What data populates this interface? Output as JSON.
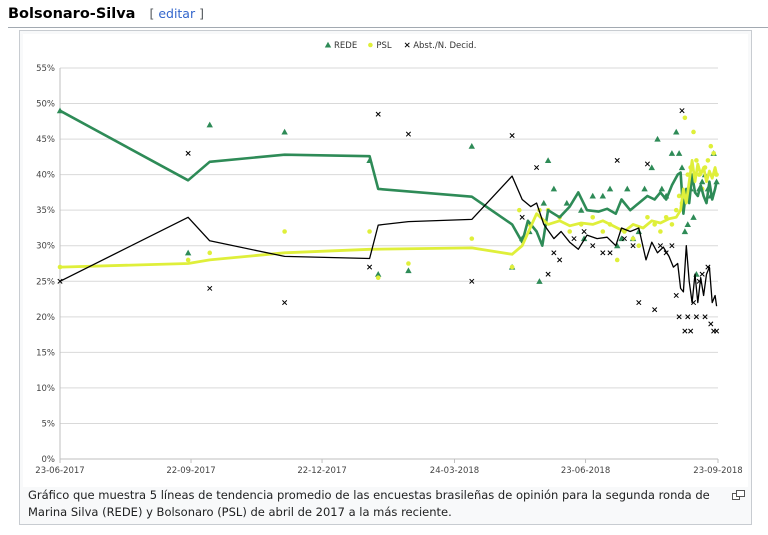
{
  "heading": {
    "title": "Bolsonaro-Silva",
    "edit_open": "[",
    "edit_label": "editar",
    "edit_close": "]"
  },
  "caption": "Gráfico que muestra 5 líneas de tendencia promedio de las encuestas brasileñas de opinión para la segunda ronda de Marina Silva (REDE) y Bolsonaro (PSL) de abril de 2017 a la más reciente.",
  "colors": {
    "rede": "#2e8b57",
    "psl": "#dfef3a",
    "abst": "#000000",
    "grid": "#d9d9d9"
  },
  "chart_data": {
    "type": "line",
    "title": "",
    "xlabel": "",
    "ylabel": "",
    "x_ticks": [
      "23-06-2017",
      "22-09-2017",
      "22-12-2017",
      "24-03-2018",
      "23-06-2018",
      "23-09-2018"
    ],
    "x_start": "2017-06-23",
    "x_end": "2018-09-23",
    "y_ticks": [
      "0%",
      "5%",
      "10%",
      "15%",
      "20%",
      "25%",
      "30%",
      "35%",
      "40%",
      "45%",
      "50%",
      "55%"
    ],
    "ylim": [
      0,
      55
    ],
    "legend_position": "top-center",
    "legend": [
      {
        "key": "rede",
        "label": "REDE",
        "marker": "triangle"
      },
      {
        "key": "psl",
        "label": "PSL",
        "marker": "dot"
      },
      {
        "key": "abst",
        "label": "Abst./N. Decid.",
        "marker": "x"
      }
    ],
    "series": [
      {
        "key": "rede",
        "name": "REDE",
        "kind": "points",
        "points": [
          [
            "2017-06-23",
            49
          ],
          [
            "2017-09-20",
            29
          ],
          [
            "2017-10-05",
            47
          ],
          [
            "2017-11-26",
            46
          ],
          [
            "2018-01-24",
            42
          ],
          [
            "2018-01-30",
            26
          ],
          [
            "2018-02-20",
            26.5
          ],
          [
            "2018-04-05",
            44
          ],
          [
            "2018-05-03",
            27
          ],
          [
            "2018-05-10",
            31
          ],
          [
            "2018-05-15",
            32
          ],
          [
            "2018-05-22",
            25
          ],
          [
            "2018-05-25",
            36
          ],
          [
            "2018-05-28",
            42
          ],
          [
            "2018-06-01",
            38
          ],
          [
            "2018-06-10",
            36
          ],
          [
            "2018-06-20",
            35
          ],
          [
            "2018-06-22",
            31
          ],
          [
            "2018-06-28",
            37
          ],
          [
            "2018-07-05",
            37
          ],
          [
            "2018-07-10",
            38
          ],
          [
            "2018-07-15",
            30
          ],
          [
            "2018-07-18",
            31
          ],
          [
            "2018-07-22",
            38
          ],
          [
            "2018-07-26",
            31
          ],
          [
            "2018-07-30",
            32
          ],
          [
            "2018-08-03",
            38
          ],
          [
            "2018-08-08",
            41
          ],
          [
            "2018-08-12",
            45
          ],
          [
            "2018-08-15",
            38
          ],
          [
            "2018-08-18",
            37
          ],
          [
            "2018-08-22",
            43
          ],
          [
            "2018-08-25",
            46
          ],
          [
            "2018-08-27",
            43
          ],
          [
            "2018-08-29",
            41
          ],
          [
            "2018-08-31",
            32
          ],
          [
            "2018-09-02",
            33
          ],
          [
            "2018-09-04",
            38
          ],
          [
            "2018-09-06",
            34
          ],
          [
            "2018-09-08",
            26
          ],
          [
            "2018-09-10",
            38
          ],
          [
            "2018-09-12",
            39
          ],
          [
            "2018-09-14",
            40
          ],
          [
            "2018-09-16",
            38
          ],
          [
            "2018-09-18",
            37
          ],
          [
            "2018-09-20",
            43
          ],
          [
            "2018-09-22",
            39
          ]
        ]
      },
      {
        "key": "psl",
        "name": "PSL",
        "kind": "points",
        "points": [
          [
            "2017-06-23",
            27
          ],
          [
            "2017-09-20",
            28
          ],
          [
            "2017-10-05",
            29
          ],
          [
            "2017-11-26",
            32
          ],
          [
            "2018-01-24",
            32
          ],
          [
            "2018-01-30",
            25.5
          ],
          [
            "2018-02-20",
            27.5
          ],
          [
            "2018-04-05",
            31
          ],
          [
            "2018-05-03",
            27
          ],
          [
            "2018-05-08",
            35
          ],
          [
            "2018-05-15",
            33
          ],
          [
            "2018-05-22",
            35
          ],
          [
            "2018-05-28",
            35
          ],
          [
            "2018-06-05",
            34
          ],
          [
            "2018-06-12",
            32
          ],
          [
            "2018-06-20",
            33
          ],
          [
            "2018-06-28",
            34
          ],
          [
            "2018-07-05",
            32
          ],
          [
            "2018-07-10",
            33
          ],
          [
            "2018-07-15",
            28
          ],
          [
            "2018-07-20",
            32
          ],
          [
            "2018-07-26",
            31
          ],
          [
            "2018-07-30",
            30
          ],
          [
            "2018-08-05",
            34
          ],
          [
            "2018-08-10",
            33
          ],
          [
            "2018-08-14",
            32
          ],
          [
            "2018-08-18",
            34
          ],
          [
            "2018-08-22",
            33
          ],
          [
            "2018-08-25",
            35
          ],
          [
            "2018-08-27",
            37
          ],
          [
            "2018-08-29",
            36
          ],
          [
            "2018-08-31",
            48
          ],
          [
            "2018-09-02",
            40
          ],
          [
            "2018-09-04",
            41
          ],
          [
            "2018-09-06",
            46
          ],
          [
            "2018-09-08",
            42
          ],
          [
            "2018-09-10",
            40
          ],
          [
            "2018-09-12",
            38
          ],
          [
            "2018-09-14",
            41
          ],
          [
            "2018-09-16",
            42
          ],
          [
            "2018-09-18",
            44
          ],
          [
            "2018-09-20",
            43
          ],
          [
            "2018-09-22",
            40
          ]
        ]
      },
      {
        "key": "abst",
        "name": "Abst./N. Decid.",
        "kind": "points",
        "points": [
          [
            "2017-06-23",
            25
          ],
          [
            "2017-09-20",
            43
          ],
          [
            "2017-10-05",
            24
          ],
          [
            "2017-11-26",
            22
          ],
          [
            "2018-01-24",
            27
          ],
          [
            "2018-01-30",
            48.5
          ],
          [
            "2018-02-20",
            45.7
          ],
          [
            "2018-04-05",
            25
          ],
          [
            "2018-05-03",
            45.5
          ],
          [
            "2018-05-10",
            34
          ],
          [
            "2018-05-20",
            41
          ],
          [
            "2018-05-28",
            26
          ],
          [
            "2018-06-01",
            29
          ],
          [
            "2018-06-05",
            28
          ],
          [
            "2018-06-15",
            31
          ],
          [
            "2018-06-22",
            32
          ],
          [
            "2018-06-28",
            30
          ],
          [
            "2018-07-05",
            29
          ],
          [
            "2018-07-10",
            29
          ],
          [
            "2018-07-15",
            42
          ],
          [
            "2018-07-20",
            31
          ],
          [
            "2018-07-26",
            30
          ],
          [
            "2018-07-30",
            22
          ],
          [
            "2018-08-05",
            41.5
          ],
          [
            "2018-08-10",
            21
          ],
          [
            "2018-08-14",
            30
          ],
          [
            "2018-08-18",
            29
          ],
          [
            "2018-08-22",
            30
          ],
          [
            "2018-08-25",
            23
          ],
          [
            "2018-08-27",
            20
          ],
          [
            "2018-08-29",
            49
          ],
          [
            "2018-08-31",
            18
          ],
          [
            "2018-09-02",
            20
          ],
          [
            "2018-09-04",
            18
          ],
          [
            "2018-09-06",
            22
          ],
          [
            "2018-09-08",
            20
          ],
          [
            "2018-09-10",
            25
          ],
          [
            "2018-09-12",
            26
          ],
          [
            "2018-09-14",
            20
          ],
          [
            "2018-09-16",
            27
          ],
          [
            "2018-09-18",
            19
          ],
          [
            "2018-09-20",
            18
          ],
          [
            "2018-09-22",
            18
          ]
        ]
      },
      {
        "key": "rede",
        "name": "REDE",
        "kind": "trend",
        "points": [
          [
            "2017-06-23",
            49
          ],
          [
            "2017-09-20",
            39.2
          ],
          [
            "2017-10-05",
            41.8
          ],
          [
            "2017-11-26",
            42.8
          ],
          [
            "2018-01-24",
            42.6
          ],
          [
            "2018-01-30",
            38
          ],
          [
            "2018-04-05",
            36.9
          ],
          [
            "2018-05-03",
            33
          ],
          [
            "2018-05-10",
            30.5
          ],
          [
            "2018-05-14",
            33.5
          ],
          [
            "2018-05-20",
            32
          ],
          [
            "2018-05-24",
            30
          ],
          [
            "2018-05-28",
            35
          ],
          [
            "2018-06-05",
            34
          ],
          [
            "2018-06-12",
            35.5
          ],
          [
            "2018-06-18",
            37.5
          ],
          [
            "2018-06-24",
            35
          ],
          [
            "2018-07-02",
            34.8
          ],
          [
            "2018-07-08",
            35.2
          ],
          [
            "2018-07-14",
            34.5
          ],
          [
            "2018-07-18",
            36.5
          ],
          [
            "2018-07-24",
            35
          ],
          [
            "2018-07-30",
            36
          ],
          [
            "2018-08-05",
            37
          ],
          [
            "2018-08-10",
            36.5
          ],
          [
            "2018-08-14",
            37.5
          ],
          [
            "2018-08-18",
            36.5
          ],
          [
            "2018-08-22",
            38.5
          ],
          [
            "2018-08-26",
            40
          ],
          [
            "2018-08-28",
            40.3
          ],
          [
            "2018-08-30",
            34.5
          ],
          [
            "2018-09-01",
            38
          ],
          [
            "2018-09-03",
            36
          ],
          [
            "2018-09-05",
            40
          ],
          [
            "2018-09-07",
            37.5
          ],
          [
            "2018-09-09",
            37
          ],
          [
            "2018-09-11",
            38.5
          ],
          [
            "2018-09-13",
            37
          ],
          [
            "2018-09-15",
            36
          ],
          [
            "2018-09-17",
            39
          ],
          [
            "2018-09-19",
            36.5
          ],
          [
            "2018-09-21",
            38
          ],
          [
            "2018-09-22",
            39
          ]
        ]
      },
      {
        "key": "psl",
        "name": "PSL",
        "kind": "trend",
        "points": [
          [
            "2017-06-23",
            27
          ],
          [
            "2017-09-20",
            27.5
          ],
          [
            "2017-10-05",
            28
          ],
          [
            "2017-11-26",
            29
          ],
          [
            "2018-01-24",
            29.5
          ],
          [
            "2018-04-05",
            29.7
          ],
          [
            "2018-05-03",
            28.8
          ],
          [
            "2018-05-10",
            30
          ],
          [
            "2018-05-20",
            34.5
          ],
          [
            "2018-05-28",
            33
          ],
          [
            "2018-06-05",
            33.5
          ],
          [
            "2018-06-12",
            32.8
          ],
          [
            "2018-06-20",
            33.2
          ],
          [
            "2018-06-28",
            33
          ],
          [
            "2018-07-05",
            33.5
          ],
          [
            "2018-07-12",
            32.8
          ],
          [
            "2018-07-20",
            32
          ],
          [
            "2018-07-26",
            33
          ],
          [
            "2018-08-02",
            32.5
          ],
          [
            "2018-08-08",
            33.5
          ],
          [
            "2018-08-14",
            33.2
          ],
          [
            "2018-08-20",
            33.8
          ],
          [
            "2018-08-25",
            34
          ],
          [
            "2018-08-28",
            35
          ],
          [
            "2018-08-30",
            38
          ],
          [
            "2018-09-01",
            36
          ],
          [
            "2018-09-03",
            39
          ],
          [
            "2018-09-05",
            42
          ],
          [
            "2018-09-07",
            39
          ],
          [
            "2018-09-09",
            41.5
          ],
          [
            "2018-09-11",
            40
          ],
          [
            "2018-09-13",
            41
          ],
          [
            "2018-09-15",
            39
          ],
          [
            "2018-09-17",
            40.5
          ],
          [
            "2018-09-19",
            39.5
          ],
          [
            "2018-09-21",
            41
          ],
          [
            "2018-09-22",
            40
          ]
        ]
      },
      {
        "key": "abst",
        "name": "Abst./N. Decid.",
        "kind": "trend",
        "points": [
          [
            "2017-06-23",
            25
          ],
          [
            "2017-09-20",
            34
          ],
          [
            "2017-10-05",
            30.7
          ],
          [
            "2017-11-26",
            28.5
          ],
          [
            "2018-01-24",
            28.2
          ],
          [
            "2018-01-30",
            32.9
          ],
          [
            "2018-02-20",
            33.4
          ],
          [
            "2018-04-05",
            33.7
          ],
          [
            "2018-05-03",
            39.8
          ],
          [
            "2018-05-10",
            36.5
          ],
          [
            "2018-05-16",
            35.5
          ],
          [
            "2018-05-20",
            36
          ],
          [
            "2018-05-25",
            33
          ],
          [
            "2018-06-01",
            31
          ],
          [
            "2018-06-06",
            32
          ],
          [
            "2018-06-12",
            30.5
          ],
          [
            "2018-06-18",
            29.5
          ],
          [
            "2018-06-24",
            31.5
          ],
          [
            "2018-07-01",
            31
          ],
          [
            "2018-07-08",
            31.2
          ],
          [
            "2018-07-14",
            30
          ],
          [
            "2018-07-18",
            32.5
          ],
          [
            "2018-07-24",
            32
          ],
          [
            "2018-07-30",
            32.5
          ],
          [
            "2018-08-04",
            28
          ],
          [
            "2018-08-08",
            30.5
          ],
          [
            "2018-08-12",
            29
          ],
          [
            "2018-08-16",
            29.8
          ],
          [
            "2018-08-20",
            28.5
          ],
          [
            "2018-08-23",
            27
          ],
          [
            "2018-08-26",
            27.5
          ],
          [
            "2018-08-28",
            24
          ],
          [
            "2018-08-30",
            23.5
          ],
          [
            "2018-09-01",
            30
          ],
          [
            "2018-09-03",
            25
          ],
          [
            "2018-09-05",
            22
          ],
          [
            "2018-09-07",
            26
          ],
          [
            "2018-09-09",
            22
          ],
          [
            "2018-09-11",
            25.5
          ],
          [
            "2018-09-13",
            23
          ],
          [
            "2018-09-15",
            26
          ],
          [
            "2018-09-17",
            27
          ],
          [
            "2018-09-19",
            22
          ],
          [
            "2018-09-21",
            23
          ],
          [
            "2018-09-22",
            21.5
          ]
        ]
      }
    ]
  }
}
